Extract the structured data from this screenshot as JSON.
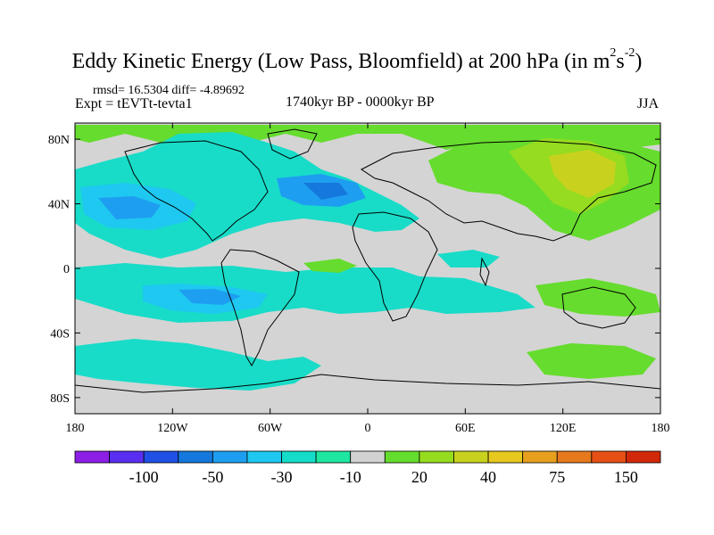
{
  "title": {
    "text": "Eddy Kinetic Energy (Low Pass, Bloomfield) at 200 hPa (in m",
    "sup1": "2",
    "mid": "s",
    "sup2": "-2",
    "close": ")"
  },
  "stats": "rmsd= 16.5304 diff= -4.89692",
  "expt": "Expt = tEVTt-tevta1",
  "period": "1740kyr BP - 0000kyr BP",
  "season": "JJA",
  "map": {
    "lon_range": [
      -180,
      180
    ],
    "lat_range": [
      -90,
      90
    ],
    "x_ticks": [
      "180",
      "120W",
      "60W",
      "0",
      "60E",
      "120E",
      "180"
    ],
    "y_ticks": [
      "80N",
      "40N",
      "0",
      "40S",
      "80S"
    ],
    "background_fill": "#d4d4d4"
  },
  "colorbar": {
    "colors": [
      "#8c1ee6",
      "#5a2ef0",
      "#2050e6",
      "#1478dc",
      "#1e9ef0",
      "#1ec8f0",
      "#14dcc8",
      "#1ee6a0",
      "#d2d2d2",
      "#64dc2d",
      "#96dc1e",
      "#c8d21e",
      "#e6c81e",
      "#e6a01e",
      "#e6781e",
      "#e65014",
      "#d2280a"
    ],
    "labels": [
      "-100",
      "-50",
      "-30",
      "-10",
      "20",
      "40",
      "75",
      "150"
    ]
  }
}
